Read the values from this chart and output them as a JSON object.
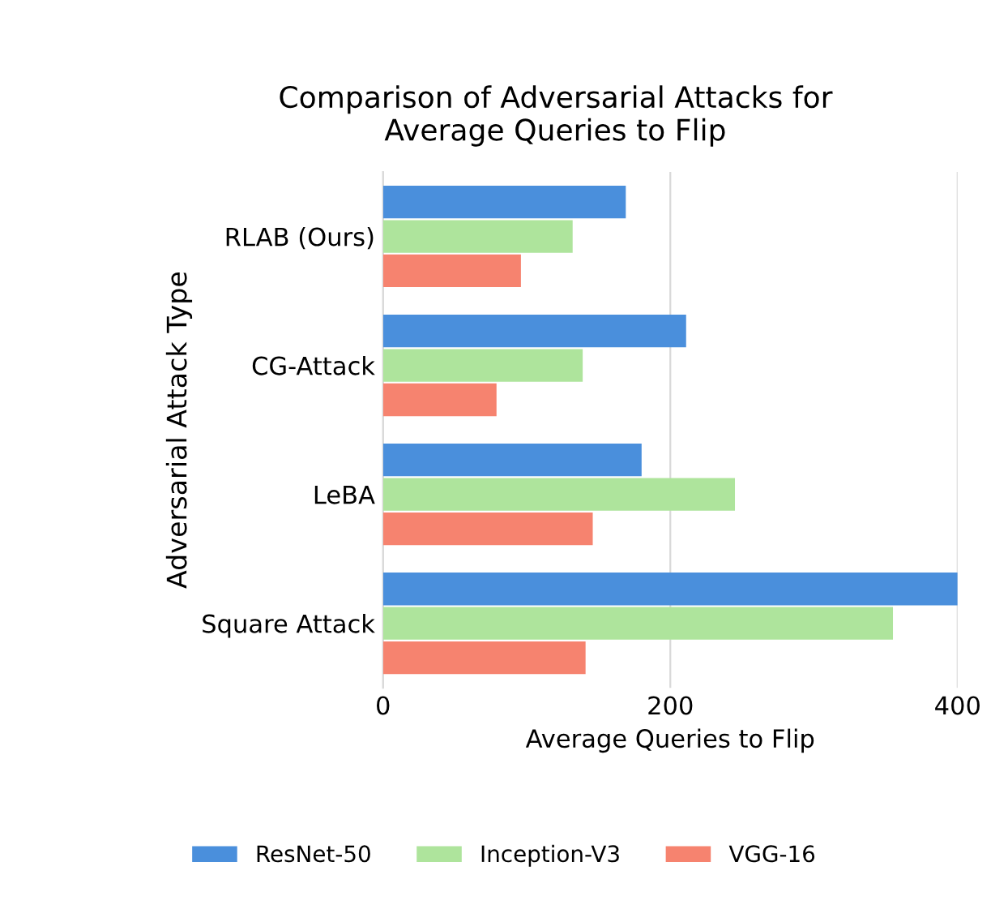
{
  "chart_data": {
    "type": "bar",
    "orientation": "horizontal",
    "title": "Comparison of Adversarial Attacks for\nAverage Queries to Flip",
    "xlabel": "Average Queries to Flip",
    "ylabel": "Adversarial Attack Type",
    "categories": [
      "RLAB (Ours)",
      "CG-Attack",
      "LeBA",
      "Square Attack"
    ],
    "series": [
      {
        "name": "ResNet-50",
        "color": "#4a8fdc",
        "values": [
          169,
          211,
          180,
          400
        ]
      },
      {
        "name": "Inception-V3",
        "color": "#aee49c",
        "values": [
          132,
          139,
          245,
          355
        ]
      },
      {
        "name": "VGG-16",
        "color": "#f6836f",
        "values": [
          96,
          79,
          146,
          141
        ]
      }
    ],
    "xlim": [
      0,
      400
    ],
    "xticks": [
      0,
      200,
      400
    ],
    "grid": "x",
    "legend": "bottom"
  }
}
